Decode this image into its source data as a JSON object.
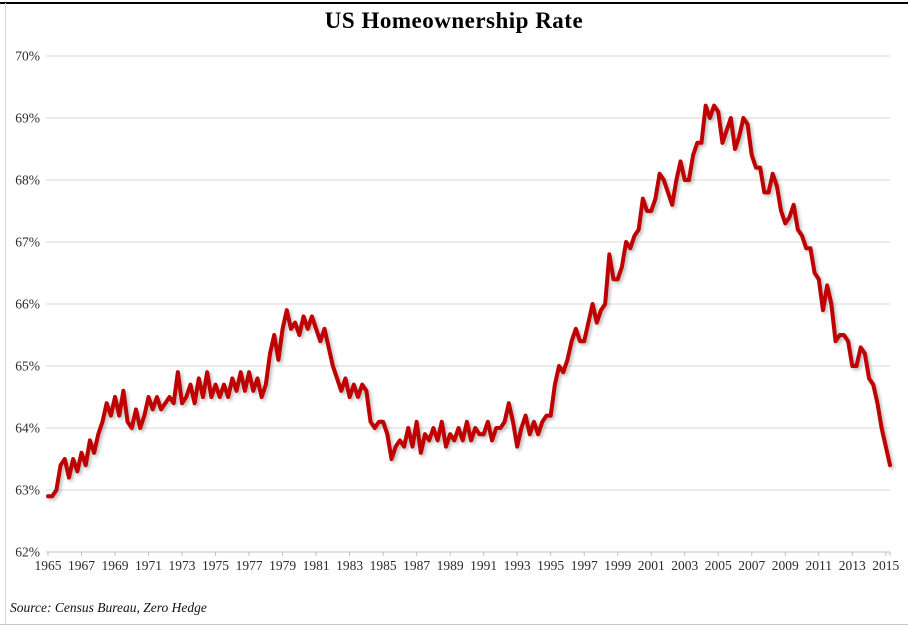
{
  "page": {
    "title": "US Homeownership Rate",
    "source": "Source: Census Bureau, Zero Hedge"
  },
  "style": {
    "line_color": "#c00000",
    "gridline_color": "#d9d9d9",
    "axis_color": "#bfbfbf",
    "text_color": "#2b2b2b",
    "top_border_color": "#000000"
  },
  "chart_data": {
    "type": "line",
    "title": "US Homeownership Rate",
    "series_name": "US homeownership rate (%)",
    "frequency": "quarterly",
    "x_start_label": "1965 Q1",
    "x_end_label": "2015 Q2",
    "xlabel": "",
    "ylabel": "",
    "ylim": [
      62,
      70
    ],
    "y_tick_step": 1,
    "y_tick_labels": [
      "62%",
      "63%",
      "64%",
      "65%",
      "66%",
      "67%",
      "68%",
      "69%",
      "70%"
    ],
    "x_tick_years": [
      1965,
      1967,
      1969,
      1971,
      1973,
      1975,
      1977,
      1979,
      1981,
      1983,
      1985,
      1987,
      1989,
      1991,
      1993,
      1995,
      1997,
      1999,
      2001,
      2003,
      2005,
      2007,
      2009,
      2011,
      2013,
      2015
    ],
    "grid": true,
    "legend": "none",
    "line_color": "#c00000",
    "values": [
      62.9,
      62.9,
      63.0,
      63.4,
      63.5,
      63.2,
      63.5,
      63.3,
      63.6,
      63.4,
      63.8,
      63.6,
      63.9,
      64.1,
      64.4,
      64.2,
      64.5,
      64.2,
      64.6,
      64.1,
      64.0,
      64.3,
      64.0,
      64.2,
      64.5,
      64.3,
      64.5,
      64.3,
      64.4,
      64.5,
      64.4,
      64.9,
      64.4,
      64.5,
      64.7,
      64.4,
      64.8,
      64.5,
      64.9,
      64.5,
      64.7,
      64.5,
      64.7,
      64.5,
      64.8,
      64.6,
      64.9,
      64.6,
      64.9,
      64.6,
      64.8,
      64.5,
      64.7,
      65.2,
      65.5,
      65.1,
      65.6,
      65.9,
      65.6,
      65.7,
      65.5,
      65.8,
      65.6,
      65.8,
      65.6,
      65.4,
      65.6,
      65.3,
      65.0,
      64.8,
      64.6,
      64.8,
      64.5,
      64.7,
      64.5,
      64.7,
      64.6,
      64.1,
      64.0,
      64.1,
      64.1,
      63.9,
      63.5,
      63.7,
      63.8,
      63.7,
      64.0,
      63.7,
      64.1,
      63.6,
      63.9,
      63.8,
      64.0,
      63.8,
      64.1,
      63.7,
      63.9,
      63.8,
      64.0,
      63.8,
      64.1,
      63.8,
      64.0,
      63.9,
      63.9,
      64.1,
      63.8,
      64.0,
      64.0,
      64.1,
      64.4,
      64.1,
      63.7,
      64.0,
      64.2,
      63.9,
      64.1,
      63.9,
      64.1,
      64.2,
      64.2,
      64.7,
      65.0,
      64.9,
      65.1,
      65.4,
      65.6,
      65.4,
      65.4,
      65.7,
      66.0,
      65.7,
      65.9,
      66.0,
      66.8,
      66.4,
      66.4,
      66.6,
      67.0,
      66.9,
      67.1,
      67.2,
      67.7,
      67.5,
      67.5,
      67.7,
      68.1,
      68.0,
      67.8,
      67.6,
      68.0,
      68.3,
      68.0,
      68.0,
      68.4,
      68.6,
      68.6,
      69.2,
      69.0,
      69.2,
      69.1,
      68.6,
      68.8,
      69.0,
      68.5,
      68.7,
      69.0,
      68.9,
      68.4,
      68.2,
      68.2,
      67.8,
      67.8,
      68.1,
      67.9,
      67.5,
      67.3,
      67.4,
      67.6,
      67.2,
      67.1,
      66.9,
      66.9,
      66.5,
      66.4,
      65.9,
      66.3,
      66.0,
      65.4,
      65.5,
      65.5,
      65.4,
      65.0,
      65.0,
      65.3,
      65.2,
      64.8,
      64.7,
      64.4,
      64.0,
      63.7,
      63.4
    ]
  }
}
